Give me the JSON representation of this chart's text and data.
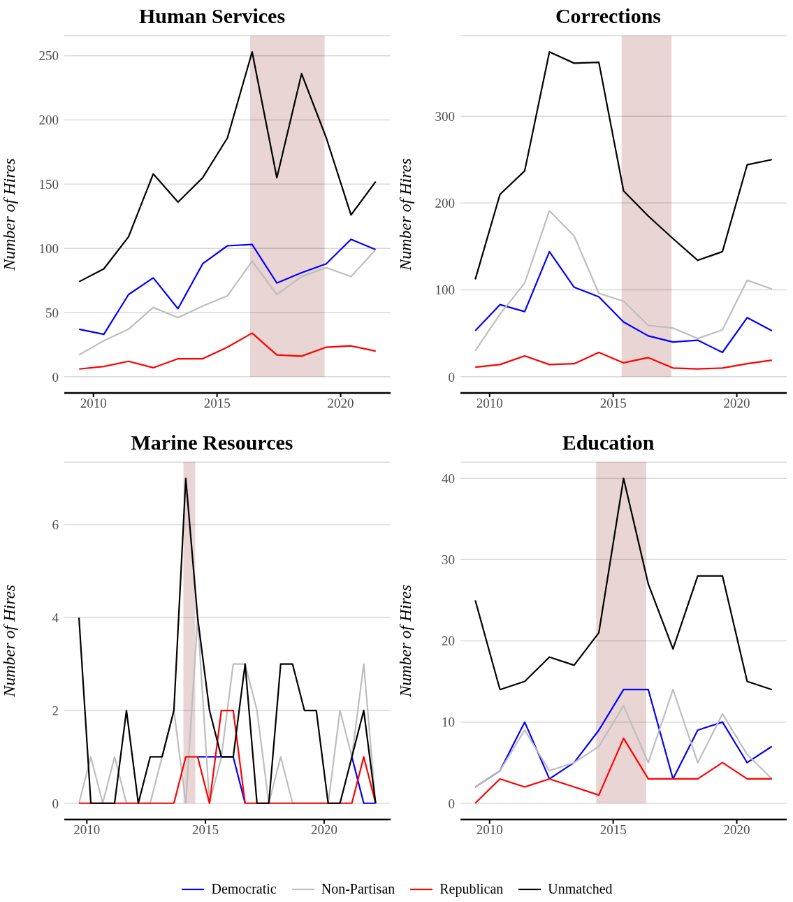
{
  "chart_data": [
    {
      "type": "line",
      "title": "Human Services",
      "ylabel": "Number of Hires",
      "x": [
        2009.42,
        2010.42,
        2011.42,
        2012.42,
        2013.42,
        2014.42,
        2015.42,
        2016.42,
        2017.42,
        2018.42,
        2019.42,
        2020.42,
        2021.42
      ],
      "xlim": [
        2008.82,
        2022.02
      ],
      "xticks": [
        2010,
        2015,
        2020
      ],
      "ylim": [
        -12.65,
        265.65
      ],
      "yticks": [
        0,
        50,
        100,
        150,
        200,
        250
      ],
      "grid": "y",
      "line_style": "solid",
      "legend": "bottom",
      "series": [
        {
          "name": "Democratic",
          "color": "#0000ff",
          "values": [
            37,
            33,
            64,
            77,
            53,
            88,
            102,
            103,
            73,
            81,
            88,
            107,
            99
          ]
        },
        {
          "name": "Non-Partisan",
          "color": "#bebebe",
          "values": [
            17,
            28,
            37,
            54,
            46,
            55,
            63,
            90,
            64,
            78,
            85,
            78,
            99
          ]
        },
        {
          "name": "Republican",
          "color": "#ff0000",
          "values": [
            6,
            8,
            12,
            7,
            14,
            14,
            23,
            34,
            17,
            16,
            23,
            24,
            20
          ]
        },
        {
          "name": "Unmatched",
          "color": "#000000",
          "values": [
            74,
            84,
            109,
            158,
            136,
            155,
            186,
            253,
            155,
            236,
            186,
            126,
            152
          ]
        }
      ],
      "bands": [
        {
          "axis": "x",
          "from": 2016.34,
          "to": 2019.35,
          "color": "#e8d5d4"
        }
      ]
    },
    {
      "type": "line",
      "title": "Corrections",
      "ylabel": "Number of Hires",
      "x": [
        2009.42,
        2010.42,
        2011.42,
        2012.42,
        2013.42,
        2014.42,
        2015.42,
        2016.42,
        2017.42,
        2018.42,
        2019.42,
        2020.42,
        2021.42
      ],
      "xlim": [
        2008.82,
        2022.02
      ],
      "xticks": [
        2010,
        2015,
        2020
      ],
      "ylim": [
        -18.7,
        392.7
      ],
      "yticks": [
        0,
        100,
        200,
        300
      ],
      "grid": "y",
      "line_style": "solid",
      "series": [
        {
          "color": "#0000ff",
          "values": [
            53,
            83,
            75,
            144,
            103,
            92,
            63,
            47,
            40,
            42,
            28,
            68,
            53
          ]
        },
        {
          "color": "#bebebe",
          "values": [
            30,
            72,
            108,
            191,
            162,
            96,
            87,
            59,
            56,
            44,
            54,
            111,
            101
          ]
        },
        {
          "color": "#ff0000",
          "values": [
            11,
            14,
            24,
            14,
            15,
            28,
            16,
            22,
            10,
            9,
            10,
            15,
            19
          ]
        },
        {
          "color": "#000000",
          "values": [
            112,
            210,
            237,
            374,
            361,
            362,
            214,
            185,
            159,
            134,
            144,
            244,
            250
          ]
        }
      ],
      "bands": [
        {
          "axis": "x",
          "from": 2015.34,
          "to": 2017.36,
          "color": "#e8d5d4"
        }
      ]
    },
    {
      "type": "line",
      "title": "Marine Resources",
      "ylabel": "Number of Hires",
      "x": [
        2009.67,
        2010.17,
        2010.67,
        2011.17,
        2011.67,
        2012.17,
        2012.67,
        2013.17,
        2013.67,
        2014.17,
        2014.67,
        2015.17,
        2015.67,
        2016.17,
        2016.67,
        2017.17,
        2017.67,
        2018.17,
        2018.67,
        2019.17,
        2019.67,
        2020.17,
        2020.67,
        2021.17,
        2021.67,
        2022.17
      ],
      "xlim": [
        2009.05,
        2022.8
      ],
      "xticks": [
        2010,
        2015,
        2020
      ],
      "ylim": [
        -0.35,
        7.35
      ],
      "yticks": [
        0,
        2,
        4,
        6
      ],
      "grid": "y",
      "line_style": "solid",
      "series": [
        {
          "color": "#0000ff",
          "values": [
            null,
            null,
            null,
            null,
            null,
            null,
            null,
            null,
            null,
            null,
            1,
            1,
            1,
            1,
            0,
            null,
            null,
            null,
            null,
            null,
            null,
            null,
            null,
            1,
            0,
            0
          ]
        },
        {
          "color": "#bebebe",
          "values": [
            0,
            1,
            0,
            1,
            0,
            0,
            0,
            1,
            2,
            0,
            4,
            0,
            1,
            3,
            3,
            2,
            0,
            1,
            0,
            0,
            0,
            0,
            2,
            1,
            3,
            0
          ]
        },
        {
          "color": "#ff0000",
          "values": [
            0,
            0,
            0,
            0,
            0,
            0,
            0,
            0,
            0,
            1,
            1,
            0,
            2,
            2,
            0,
            0,
            0,
            0,
            0,
            0,
            0,
            0,
            0,
            0,
            1,
            0
          ]
        },
        {
          "color": "#000000",
          "values": [
            4,
            0,
            0,
            0,
            2,
            0,
            1,
            1,
            2,
            7,
            4,
            2,
            1,
            1,
            3,
            0,
            0,
            3,
            3,
            2,
            2,
            0,
            0,
            1,
            2,
            0
          ]
        }
      ],
      "bands": [
        {
          "axis": "x",
          "from": 2014.07,
          "to": 2014.57,
          "color": "#e8d5d4"
        }
      ]
    },
    {
      "type": "line",
      "title": "Education",
      "ylabel": "Number of Hires",
      "x": [
        2009.42,
        2010.42,
        2011.42,
        2012.42,
        2013.42,
        2014.42,
        2015.42,
        2016.42,
        2017.42,
        2018.42,
        2019.42,
        2020.42,
        2021.42
      ],
      "xlim": [
        2008.82,
        2022.02
      ],
      "xticks": [
        2010,
        2015,
        2020
      ],
      "ylim": [
        -2,
        42
      ],
      "yticks": [
        0,
        10,
        20,
        30,
        40
      ],
      "grid": "y",
      "line_style": "solid",
      "series": [
        {
          "color": "#0000ff",
          "values": [
            2,
            4,
            10,
            3,
            5,
            9,
            14,
            14,
            3,
            9,
            10,
            5,
            7
          ]
        },
        {
          "color": "#bebebe",
          "values": [
            2,
            4,
            9,
            4,
            5,
            7,
            12,
            5,
            14,
            5,
            11,
            6,
            3
          ]
        },
        {
          "color": "#ff0000",
          "values": [
            0,
            3,
            2,
            3,
            2,
            1,
            8,
            3,
            3,
            3,
            5,
            3,
            3
          ]
        },
        {
          "color": "#000000",
          "values": [
            25,
            14,
            15,
            18,
            17,
            21,
            40,
            27,
            19,
            28,
            28,
            15,
            14
          ]
        }
      ],
      "bands": [
        {
          "axis": "x",
          "from": 2014.31,
          "to": 2016.34,
          "color": "#e8d5d4"
        }
      ]
    }
  ]
}
